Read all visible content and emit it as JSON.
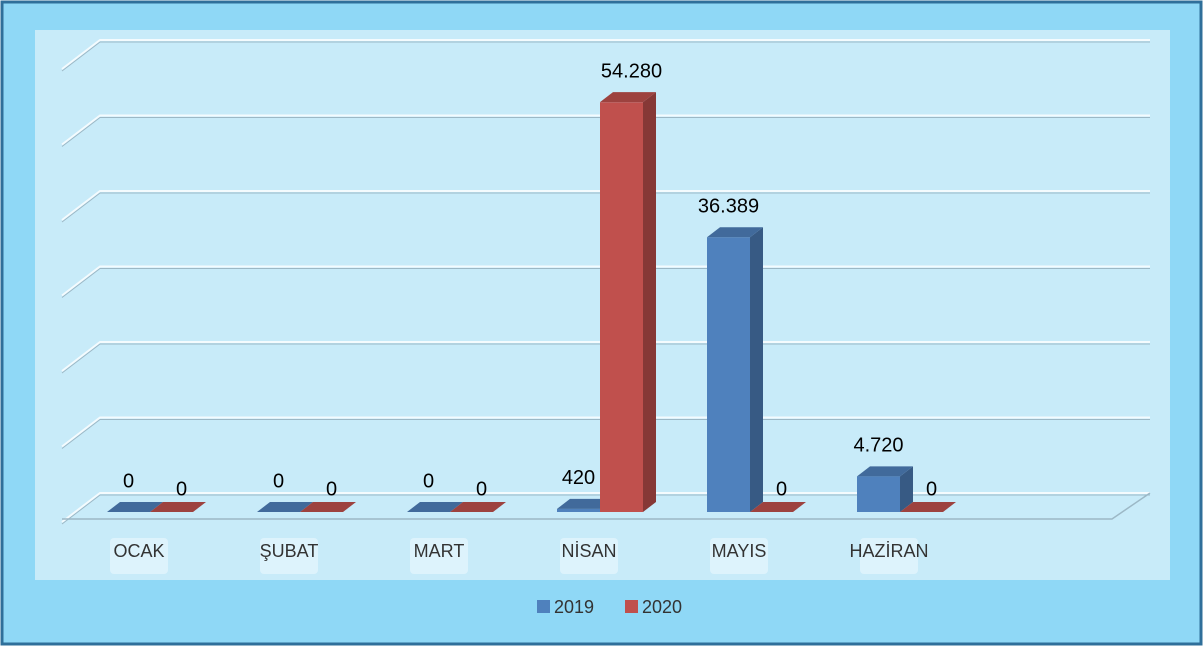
{
  "chart_data": {
    "type": "bar3d",
    "categories": [
      "OCAK",
      "ŞUBAT",
      "MART",
      "NİSAN",
      "MAYIS",
      "HAZİRAN"
    ],
    "series": [
      {
        "name": "2019",
        "color": "#4f81bd",
        "values": [
          0,
          0,
          0,
          420,
          36389,
          4720
        ],
        "value_labels": [
          "0",
          "0",
          "0",
          "420",
          "36.389",
          "4.720"
        ]
      },
      {
        "name": "2020",
        "color": "#c0504d",
        "values": [
          0,
          0,
          0,
          54280,
          0,
          0
        ],
        "value_labels": [
          "0",
          "0",
          "0",
          "54.280",
          "0",
          "0"
        ]
      }
    ],
    "ylim": [
      0,
      60000
    ],
    "yticks": [
      0,
      10000,
      20000,
      30000,
      40000,
      50000,
      60000
    ],
    "grid": true,
    "legend": "bottom"
  }
}
